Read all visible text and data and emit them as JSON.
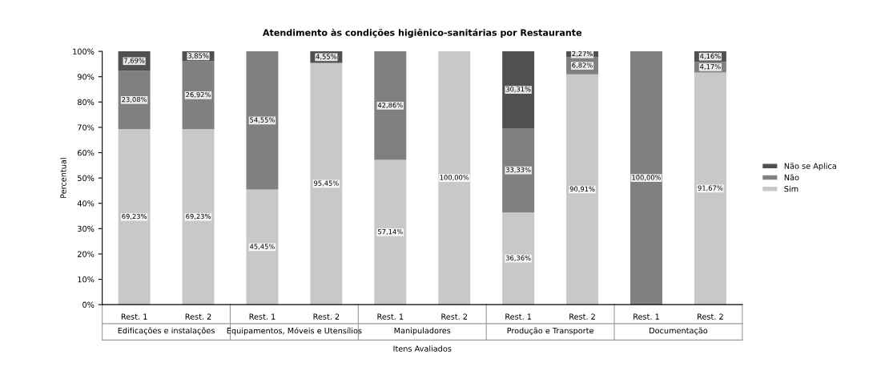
{
  "chart_data": {
    "type": "bar",
    "stacked": true,
    "title": "Atendimento às condições higiênico-sanitárias por Restaurante",
    "xlabel": "Itens Avaliados",
    "ylabel": "Percentual",
    "categories": [
      "Rest. 1",
      "Rest. 2",
      "Rest. 1",
      "Rest. 2",
      "Rest. 1",
      "Rest. 2",
      "Rest. 1",
      "Rest. 2",
      "Rest. 1",
      "Rest. 2"
    ],
    "annotations": [
      "Edificações e instalações",
      "Equipamentos, Móveis e Utensílios",
      "Manipuladores",
      "Produção e Transporte",
      "Documentação"
    ],
    "series": [
      {
        "name": "Sim",
        "color": "#c8c8c8",
        "values": [
          69.23,
          69.23,
          45.45,
          95.45,
          57.14,
          100,
          36.36,
          90.91,
          null,
          91.67
        ],
        "value_labels": [
          "69,23%",
          "69,23%",
          "45,45%",
          "95,45%",
          "57,14%",
          "100,00%",
          "36,36%",
          "90,91%",
          null,
          "91,67%"
        ]
      },
      {
        "name": "Não",
        "color": "#808080",
        "values": [
          23.08,
          26.92,
          54.55,
          null,
          42.86,
          null,
          33.33,
          6.82,
          100,
          4.17
        ],
        "value_labels": [
          "23,08%",
          "26,92%",
          "54,55%",
          null,
          "42,86%",
          null,
          "33,33%",
          "6,82%",
          "100,00%",
          "4,17%"
        ]
      },
      {
        "name": "Não se Aplica",
        "color": "#505050",
        "values": [
          7.69,
          3.85,
          null,
          4.55,
          null,
          null,
          30.31,
          2.27,
          null,
          4.16
        ],
        "value_labels": [
          "7,69%",
          "3,85%",
          null,
          "4,55%",
          null,
          null,
          "30,31%",
          "2,27%",
          null,
          "4,16%"
        ]
      }
    ],
    "ylim": [
      0,
      100
    ],
    "yticks": [
      {
        "value": 0,
        "label": "0%"
      },
      {
        "value": 10,
        "label": "10%"
      },
      {
        "value": 20,
        "label": "20%"
      },
      {
        "value": 30,
        "label": "30%"
      },
      {
        "value": 40,
        "label": "40%"
      },
      {
        "value": 50,
        "label": "50%"
      },
      {
        "value": 60,
        "label": "60%"
      },
      {
        "value": 70,
        "label": "70%"
      },
      {
        "value": 80,
        "label": "80%"
      },
      {
        "value": 90,
        "label": "90%"
      },
      {
        "value": 100,
        "label": "100%"
      }
    ],
    "legend": "right",
    "grid": false
  }
}
